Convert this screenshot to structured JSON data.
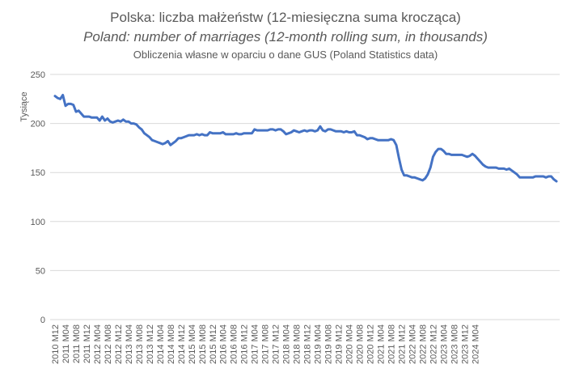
{
  "chart_data": {
    "type": "line",
    "title": "Polska: liczba małżeństw (12-miesięczna suma krocząca)",
    "subtitle": "Poland: number of marriages (12-month rolling sum, in thousands)",
    "note": "Obliczenia własne w oparciu o dane GUS (Poland Statistics data)",
    "ylabel": "Tysiące",
    "xlabel": "",
    "ylim": [
      0,
      250
    ],
    "yticks": [
      0,
      50,
      100,
      150,
      200,
      250
    ],
    "grid": "horizontal",
    "legend": "none",
    "line_color": "#4472C4",
    "x_tick_labels": [
      "2010 M12",
      "2011 M04",
      "2011 M08",
      "2011 M12",
      "2012 M04",
      "2012 M08",
      "2012 M12",
      "2013 M04",
      "2013 M08",
      "2013 M12",
      "2014 M04",
      "2014 M08",
      "2014 M12",
      "2015 M04",
      "2015 M08",
      "2015 M12",
      "2016 M04",
      "2016 M08",
      "2016 M12",
      "2017 M04",
      "2017 M08",
      "2017 M12",
      "2018 M04",
      "2018 M08",
      "2018 M12",
      "2019 M04",
      "2019 M08",
      "2019 M12",
      "2020 M04",
      "2020 M08",
      "2020 M12",
      "2021 M04",
      "2021 M08",
      "2021 M12",
      "2022 M04",
      "2022 M08",
      "2022 M12",
      "2023 M04",
      "2023 M08",
      "2023 M12",
      "2024 M04"
    ],
    "x_start": "2010-12",
    "x_end": "2024-06",
    "series": [
      {
        "values": [
          228,
          226,
          225,
          229,
          218,
          220,
          220,
          219,
          212,
          213,
          210,
          207,
          207,
          207,
          206,
          206,
          206,
          203,
          207,
          203,
          205,
          202,
          201,
          202,
          203,
          202,
          204,
          202,
          202,
          200,
          200,
          199,
          196,
          194,
          190,
          188,
          186,
          183,
          182,
          181,
          180,
          179,
          180,
          182,
          178,
          180,
          182,
          185,
          185,
          186,
          187,
          188,
          188,
          188,
          189,
          188,
          189,
          188,
          188,
          191,
          190,
          190,
          190,
          190,
          191,
          189,
          189,
          189,
          189,
          190,
          189,
          189,
          190,
          190,
          190,
          190,
          194,
          193,
          193,
          193,
          193,
          193,
          194,
          194,
          193,
          194,
          194,
          192,
          189,
          190,
          191,
          193,
          192,
          191,
          192,
          193,
          192,
          193,
          193,
          192,
          193,
          197,
          193,
          192,
          194,
          194,
          193,
          192,
          192,
          192,
          191,
          192,
          191,
          191,
          192,
          188,
          188,
          187,
          186,
          184,
          185,
          185,
          184,
          183,
          183,
          183,
          183,
          183,
          184,
          183,
          178,
          165,
          153,
          147,
          147,
          146,
          145,
          145,
          144,
          143,
          142,
          144,
          148,
          155,
          166,
          171,
          174,
          174,
          172,
          169,
          169,
          168,
          168,
          168,
          168,
          168,
          167,
          166,
          167,
          169,
          167,
          164,
          161,
          158,
          156,
          155,
          155,
          155,
          155,
          154,
          154,
          154,
          153,
          154,
          152,
          150,
          148,
          145,
          145,
          145,
          145,
          145,
          145,
          146,
          146,
          146,
          146,
          145,
          146,
          146,
          143,
          141
        ]
      }
    ]
  }
}
